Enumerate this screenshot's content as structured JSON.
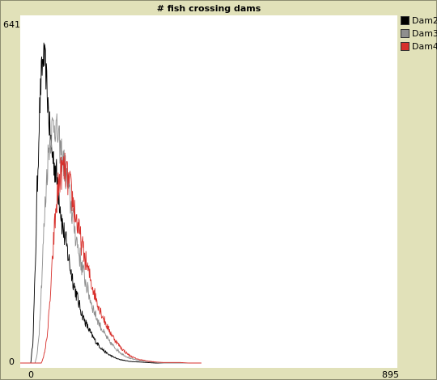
{
  "chart_data": {
    "type": "line",
    "title": "# fish crossing dams",
    "xlabel": "",
    "ylabel": "",
    "xlim": [
      0,
      895
    ],
    "ylim": [
      0,
      641
    ],
    "x_tick_labels": [
      "0",
      "895"
    ],
    "y_tick_labels": [
      "0",
      "641"
    ],
    "grid": false,
    "legend_position": "right",
    "series": [
      {
        "name": "Dam2",
        "color": "#000000",
        "points": [
          [
            0,
            0
          ],
          [
            25,
            0
          ],
          [
            30,
            40
          ],
          [
            35,
            160
          ],
          [
            40,
            320
          ],
          [
            45,
            460
          ],
          [
            50,
            540
          ],
          [
            55,
            580
          ],
          [
            60,
            560
          ],
          [
            65,
            500
          ],
          [
            70,
            440
          ],
          [
            75,
            400
          ],
          [
            80,
            380
          ],
          [
            85,
            360
          ],
          [
            90,
            330
          ],
          [
            95,
            300
          ],
          [
            100,
            260
          ],
          [
            110,
            220
          ],
          [
            120,
            175
          ],
          [
            130,
            140
          ],
          [
            140,
            110
          ],
          [
            150,
            85
          ],
          [
            160,
            68
          ],
          [
            170,
            52
          ],
          [
            180,
            40
          ],
          [
            190,
            30
          ],
          [
            200,
            22
          ],
          [
            210,
            16
          ],
          [
            220,
            12
          ],
          [
            230,
            8
          ],
          [
            240,
            6
          ],
          [
            260,
            3
          ],
          [
            280,
            2
          ],
          [
            300,
            1
          ],
          [
            320,
            0
          ],
          [
            400,
            0
          ]
        ]
      },
      {
        "name": "Dam3",
        "color": "#8e8e8e",
        "points": [
          [
            0,
            0
          ],
          [
            35,
            0
          ],
          [
            40,
            15
          ],
          [
            45,
            60
          ],
          [
            50,
            140
          ],
          [
            55,
            230
          ],
          [
            60,
            310
          ],
          [
            65,
            380
          ],
          [
            70,
            420
          ],
          [
            75,
            440
          ],
          [
            80,
            455
          ],
          [
            85,
            445
          ],
          [
            90,
            425
          ],
          [
            95,
            405
          ],
          [
            100,
            390
          ],
          [
            110,
            350
          ],
          [
            120,
            300
          ],
          [
            130,
            250
          ],
          [
            140,
            205
          ],
          [
            150,
            170
          ],
          [
            160,
            138
          ],
          [
            170,
            110
          ],
          [
            180,
            88
          ],
          [
            190,
            70
          ],
          [
            200,
            55
          ],
          [
            210,
            42
          ],
          [
            220,
            33
          ],
          [
            230,
            25
          ],
          [
            240,
            18
          ],
          [
            250,
            13
          ],
          [
            260,
            9
          ],
          [
            280,
            5
          ],
          [
            300,
            3
          ],
          [
            320,
            1
          ],
          [
            340,
            0
          ],
          [
            420,
            0
          ]
        ]
      },
      {
        "name": "Dam4",
        "color": "#d7302c",
        "points": [
          [
            0,
            0
          ],
          [
            50,
            0
          ],
          [
            55,
            10
          ],
          [
            60,
            30
          ],
          [
            65,
            60
          ],
          [
            70,
            110
          ],
          [
            75,
            170
          ],
          [
            80,
            240
          ],
          [
            85,
            290
          ],
          [
            90,
            330
          ],
          [
            95,
            355
          ],
          [
            100,
            365
          ],
          [
            105,
            365
          ],
          [
            110,
            355
          ],
          [
            115,
            340
          ],
          [
            120,
            325
          ],
          [
            125,
            305
          ],
          [
            130,
            285
          ],
          [
            135,
            265
          ],
          [
            140,
            245
          ],
          [
            150,
            210
          ],
          [
            160,
            178
          ],
          [
            170,
            148
          ],
          [
            180,
            122
          ],
          [
            190,
            100
          ],
          [
            200,
            80
          ],
          [
            210,
            63
          ],
          [
            220,
            50
          ],
          [
            230,
            38
          ],
          [
            240,
            28
          ],
          [
            250,
            20
          ],
          [
            260,
            14
          ],
          [
            270,
            10
          ],
          [
            280,
            7
          ],
          [
            300,
            4
          ],
          [
            320,
            2
          ],
          [
            340,
            1
          ],
          [
            360,
            1
          ],
          [
            380,
            1
          ],
          [
            400,
            0
          ],
          [
            430,
            0
          ]
        ]
      }
    ]
  }
}
